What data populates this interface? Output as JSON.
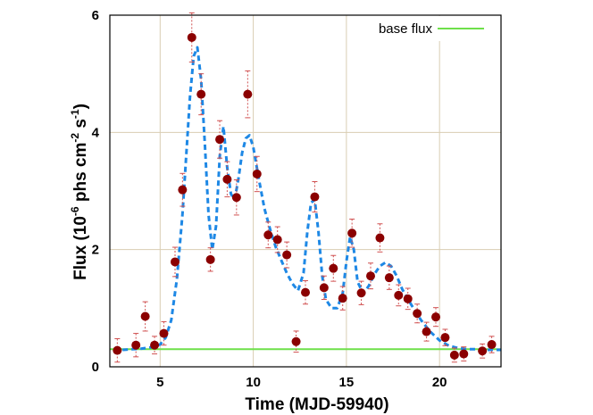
{
  "chart_data": {
    "type": "scatter",
    "xlabel": "Time (MJD-59940)",
    "ylabel_parts": {
      "prefix": "Flux (10",
      "exp1": "-6",
      "mid": " phs cm",
      "exp2": "-2",
      "mid2": " s",
      "exp3": "-1",
      "suffix": ")"
    },
    "xlim": [
      2.3,
      23.3
    ],
    "ylim": [
      0,
      6
    ],
    "xticks": [
      5,
      10,
      15,
      20
    ],
    "yticks": [
      0,
      2,
      4,
      6
    ],
    "grid": true,
    "legend": {
      "position": "top-right",
      "entries": [
        "base flux"
      ]
    },
    "base_flux": {
      "name": "base flux",
      "value": 0.3,
      "color": "#6ee04a"
    },
    "points": {
      "color": "#8b0000",
      "errorbar_color": "#d05050",
      "x": [
        2.7,
        3.7,
        4.2,
        4.7,
        5.2,
        5.8,
        6.2,
        6.7,
        7.2,
        7.7,
        8.2,
        8.6,
        9.1,
        9.7,
        10.2,
        10.8,
        11.3,
        11.8,
        12.3,
        12.8,
        13.3,
        13.8,
        14.3,
        14.8,
        15.3,
        15.8,
        16.3,
        16.8,
        17.3,
        17.8,
        18.3,
        18.8,
        19.3,
        19.8,
        20.3,
        20.8,
        21.3,
        22.3,
        22.8
      ],
      "y": [
        0.28,
        0.37,
        0.86,
        0.37,
        0.57,
        1.79,
        3.02,
        5.62,
        4.65,
        1.83,
        3.88,
        3.2,
        2.89,
        4.65,
        3.29,
        2.25,
        2.17,
        1.91,
        0.43,
        1.27,
        2.9,
        1.35,
        1.68,
        1.17,
        2.28,
        1.26,
        1.55,
        2.2,
        1.52,
        1.22,
        1.16,
        0.91,
        0.6,
        0.85,
        0.5,
        0.2,
        0.22,
        0.27,
        0.38
      ],
      "err": [
        0.2,
        0.2,
        0.25,
        0.15,
        0.2,
        0.25,
        0.28,
        0.42,
        0.35,
        0.2,
        0.32,
        0.3,
        0.3,
        0.4,
        0.3,
        0.22,
        0.22,
        0.22,
        0.18,
        0.2,
        0.26,
        0.2,
        0.22,
        0.2,
        0.24,
        0.2,
        0.22,
        0.24,
        0.2,
        0.18,
        0.18,
        0.16,
        0.16,
        0.16,
        0.14,
        0.12,
        0.12,
        0.12,
        0.14
      ]
    },
    "model_curve": {
      "color": "#1e88e5",
      "style": "dashed",
      "x": [
        2.5,
        3.0,
        3.5,
        4.0,
        4.5,
        5.0,
        5.3,
        5.6,
        5.9,
        6.2,
        6.4,
        6.6,
        6.8,
        7.0,
        7.2,
        7.4,
        7.6,
        7.8,
        8.0,
        8.2,
        8.4,
        8.6,
        8.8,
        9.0,
        9.2,
        9.4,
        9.6,
        9.8,
        10.0,
        10.3,
        10.6,
        10.9,
        11.2,
        11.5,
        11.8,
        12.1,
        12.4,
        12.7,
        12.9,
        13.1,
        13.3,
        13.5,
        13.7,
        13.9,
        14.2,
        14.5,
        14.8,
        15.0,
        15.2,
        15.4,
        15.6,
        15.9,
        16.2,
        16.5,
        16.8,
        17.1,
        17.4,
        17.7,
        18.0,
        18.5,
        19.0,
        19.5,
        20.0,
        20.5,
        21.0,
        21.5,
        22.0,
        22.5,
        23.0,
        23.3
      ],
      "y": [
        0.28,
        0.29,
        0.3,
        0.31,
        0.33,
        0.38,
        0.5,
        0.8,
        1.5,
        2.6,
        3.6,
        4.6,
        5.3,
        5.45,
        4.9,
        3.8,
        2.6,
        2.0,
        2.4,
        3.6,
        4.1,
        3.4,
        2.95,
        2.85,
        3.2,
        3.65,
        3.9,
        3.95,
        3.75,
        3.2,
        2.7,
        2.35,
        2.05,
        1.82,
        1.6,
        1.42,
        1.3,
        1.6,
        2.3,
        2.8,
        2.85,
        2.3,
        1.55,
        1.15,
        1.0,
        1.0,
        1.25,
        1.8,
        2.22,
        2.0,
        1.45,
        1.25,
        1.38,
        1.58,
        1.72,
        1.78,
        1.72,
        1.55,
        1.32,
        1.05,
        0.8,
        0.6,
        0.45,
        0.36,
        0.32,
        0.3,
        0.3,
        0.29,
        0.29,
        0.29
      ]
    }
  }
}
